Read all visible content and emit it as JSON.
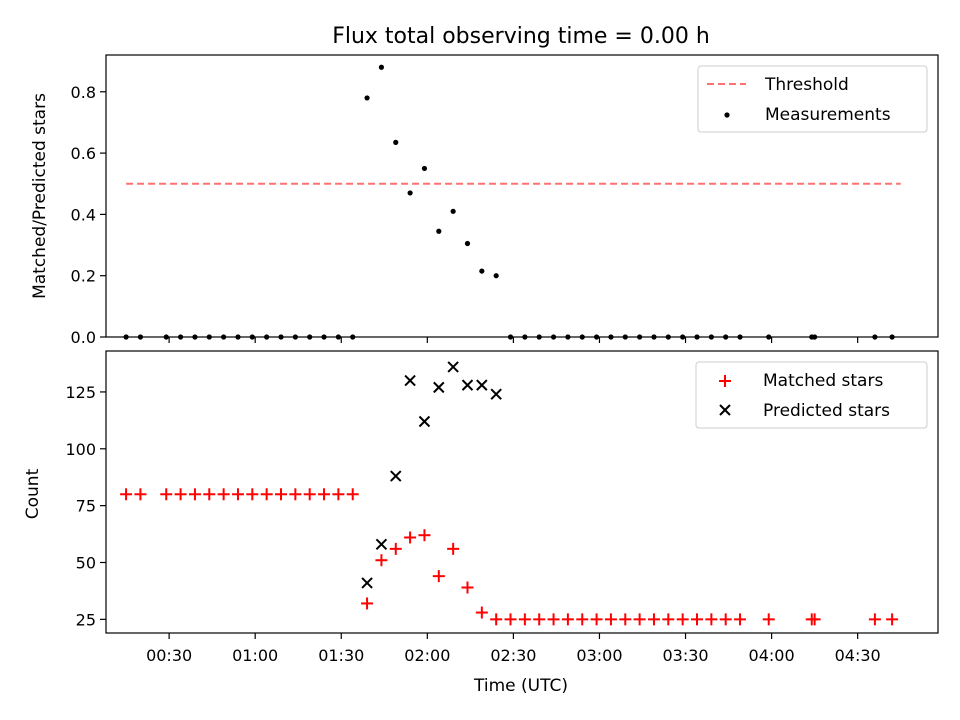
{
  "figure": {
    "title": "Flux total observing time = 0.00 h"
  },
  "chart_data": [
    {
      "type": "scatter",
      "ylabel": "Matched/Predicted stars",
      "xlabel": "",
      "ylim": [
        0,
        0.92
      ],
      "yticks": [
        0.0,
        0.2,
        0.4,
        0.6,
        0.8
      ],
      "ytick_labels": [
        "0.0",
        "0.2",
        "0.4",
        "0.6",
        "0.8"
      ],
      "xlim": [
        "00:08",
        "04:58"
      ],
      "grid": false,
      "legend_position": "top-right",
      "threshold": {
        "name": "Threshold",
        "value": 0.5,
        "x_range": [
          "00:15",
          "04:45"
        ],
        "color": "#ff7070",
        "style": "dashed"
      },
      "series": [
        {
          "name": "Measurements",
          "marker": "dot",
          "color": "#000000",
          "x": [
            "00:15",
            "00:20",
            "00:29",
            "00:34",
            "00:39",
            "00:44",
            "00:49",
            "00:54",
            "00:59",
            "01:04",
            "01:09",
            "01:14",
            "01:19",
            "01:24",
            "01:29",
            "01:34",
            "01:39",
            "01:44",
            "01:49",
            "01:54",
            "01:59",
            "02:04",
            "02:09",
            "02:14",
            "02:19",
            "02:24",
            "02:29",
            "02:34",
            "02:39",
            "02:44",
            "02:49",
            "02:54",
            "02:59",
            "03:04",
            "03:09",
            "03:14",
            "03:19",
            "03:24",
            "03:29",
            "03:34",
            "03:39",
            "03:44",
            "03:49",
            "03:59",
            "04:14",
            "04:15",
            "04:36",
            "04:42"
          ],
          "y": [
            0,
            0,
            0,
            0,
            0,
            0,
            0,
            0,
            0,
            0,
            0,
            0,
            0,
            0,
            0,
            0,
            0.78,
            0.88,
            0.635,
            0.47,
            0.55,
            0.345,
            0.41,
            0.305,
            0.215,
            0.2,
            0,
            0,
            0,
            0,
            0,
            0,
            0,
            0,
            0,
            0,
            0,
            0,
            0,
            0,
            0,
            0,
            0,
            0,
            0,
            0,
            0,
            0
          ]
        }
      ]
    },
    {
      "type": "scatter",
      "xlabel": "Time (UTC)",
      "ylabel": "Count",
      "ylim": [
        19,
        143
      ],
      "yticks": [
        25,
        50,
        75,
        100,
        125
      ],
      "ytick_labels": [
        "25",
        "50",
        "75",
        "100",
        "125"
      ],
      "xlim": [
        "00:08",
        "04:58"
      ],
      "xticks": [
        "00:30",
        "01:00",
        "01:30",
        "02:00",
        "02:30",
        "03:00",
        "03:30",
        "04:00",
        "04:30"
      ],
      "xtick_labels": [
        "00:30",
        "01:00",
        "01:30",
        "02:00",
        "02:30",
        "03:00",
        "03:30",
        "04:00",
        "04:30"
      ],
      "grid": false,
      "legend_position": "top-right",
      "series": [
        {
          "name": "Matched stars",
          "marker": "plus",
          "color": "#ff0000",
          "x": [
            "00:15",
            "00:20",
            "00:29",
            "00:34",
            "00:39",
            "00:44",
            "00:49",
            "00:54",
            "00:59",
            "01:04",
            "01:09",
            "01:14",
            "01:19",
            "01:24",
            "01:29",
            "01:34",
            "01:39",
            "01:44",
            "01:49",
            "01:54",
            "01:59",
            "02:04",
            "02:09",
            "02:14",
            "02:19",
            "02:24",
            "02:29",
            "02:34",
            "02:39",
            "02:44",
            "02:49",
            "02:54",
            "02:59",
            "03:04",
            "03:09",
            "03:14",
            "03:19",
            "03:24",
            "03:29",
            "03:34",
            "03:39",
            "03:44",
            "03:49",
            "03:59",
            "04:14",
            "04:15",
            "04:36",
            "04:42"
          ],
          "y": [
            80,
            80,
            80,
            80,
            80,
            80,
            80,
            80,
            80,
            80,
            80,
            80,
            80,
            80,
            80,
            80,
            32,
            51,
            56,
            61,
            62,
            44,
            56,
            39,
            28,
            25,
            25,
            25,
            25,
            25,
            25,
            25,
            25,
            25,
            25,
            25,
            25,
            25,
            25,
            25,
            25,
            25,
            25,
            25,
            25,
            25,
            25,
            25
          ]
        },
        {
          "name": "Predicted stars",
          "marker": "x",
          "color": "#000000",
          "x": [
            "01:39",
            "01:44",
            "01:49",
            "01:54",
            "01:59",
            "02:04",
            "02:09",
            "02:14",
            "02:19",
            "02:24"
          ],
          "y": [
            41,
            58,
            88,
            130,
            112,
            127,
            136,
            128,
            128,
            124
          ]
        }
      ]
    }
  ]
}
